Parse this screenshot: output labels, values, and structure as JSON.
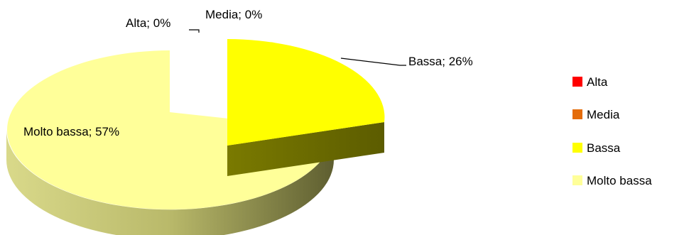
{
  "chart_data": {
    "type": "pie",
    "title": "",
    "categories": [
      "Alta",
      "Media",
      "Bassa",
      "Molto bassa"
    ],
    "values": [
      0,
      0,
      26,
      57
    ],
    "colors": [
      "#ff0000",
      "#e46c0a",
      "#ffff00",
      "#ffff99"
    ],
    "data_labels": [
      "Alta; 0%",
      "Media; 0%",
      "Bassa; 26%",
      "Molto bassa; 57%"
    ],
    "legend": {
      "placement": "right",
      "entries": [
        "Alta",
        "Media",
        "Bassa",
        "Molto bassa"
      ]
    },
    "style": "3d-exploded"
  }
}
